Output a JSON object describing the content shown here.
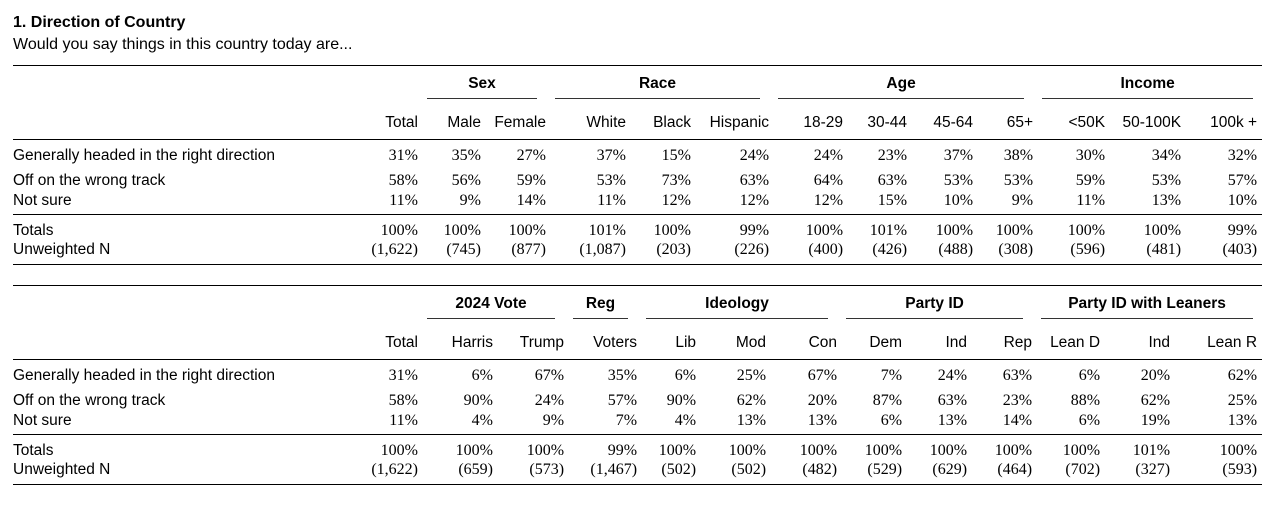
{
  "page": {
    "title": "1. Direction of Country",
    "subtitle": "Would you say things in this country today are..."
  },
  "colors": {
    "text": "#000000",
    "rule": "#000000",
    "background": "#ffffff"
  },
  "tables": [
    {
      "name": "demographics",
      "groups": [
        {
          "label": "Sex",
          "span": 2
        },
        {
          "label": "Race",
          "span": 3
        },
        {
          "label": "Age",
          "span": 4
        },
        {
          "label": "Income",
          "span": 3
        }
      ],
      "columns": [
        "Total",
        "Male",
        "Female",
        "White",
        "Black",
        "Hispanic",
        "18-29",
        "30-44",
        "45-64",
        "65+",
        "<50K",
        "50-100K",
        "100k +"
      ],
      "rows": [
        {
          "label": "Generally headed in the right direction",
          "values": [
            "31%",
            "35%",
            "27%",
            "37%",
            "15%",
            "24%",
            "24%",
            "23%",
            "37%",
            "38%",
            "30%",
            "34%",
            "32%"
          ]
        },
        {
          "label": "Off on the wrong track",
          "values": [
            "58%",
            "56%",
            "59%",
            "53%",
            "73%",
            "63%",
            "64%",
            "63%",
            "53%",
            "53%",
            "59%",
            "53%",
            "57%"
          ]
        },
        {
          "label": "Not sure",
          "values": [
            "11%",
            "9%",
            "14%",
            "11%",
            "12%",
            "12%",
            "12%",
            "15%",
            "10%",
            "9%",
            "11%",
            "13%",
            "10%"
          ]
        }
      ],
      "summary_rows": [
        {
          "label": "Totals",
          "values": [
            "100%",
            "100%",
            "100%",
            "101%",
            "100%",
            "99%",
            "100%",
            "101%",
            "100%",
            "100%",
            "100%",
            "100%",
            "99%"
          ]
        },
        {
          "label": "Unweighted N",
          "values": [
            "(1,622)",
            "(745)",
            "(877)",
            "(1,087)",
            "(203)",
            "(226)",
            "(400)",
            "(426)",
            "(488)",
            "(308)",
            "(596)",
            "(481)",
            "(403)"
          ]
        }
      ]
    },
    {
      "name": "politics",
      "groups": [
        {
          "label": "2024 Vote",
          "span": 2
        },
        {
          "label": "Reg",
          "span": 1
        },
        {
          "label": "Ideology",
          "span": 3
        },
        {
          "label": "Party ID",
          "span": 3
        },
        {
          "label": "Party ID with Leaners",
          "span": 3
        }
      ],
      "columns": [
        "Total",
        "Harris",
        "Trump",
        "Voters",
        "Lib",
        "Mod",
        "Con",
        "Dem",
        "Ind",
        "Rep",
        "Lean D",
        "Ind",
        "Lean R"
      ],
      "rows": [
        {
          "label": "Generally headed in the right direction",
          "values": [
            "31%",
            "6%",
            "67%",
            "35%",
            "6%",
            "25%",
            "67%",
            "7%",
            "24%",
            "63%",
            "6%",
            "20%",
            "62%"
          ]
        },
        {
          "label": "Off on the wrong track",
          "values": [
            "58%",
            "90%",
            "24%",
            "57%",
            "90%",
            "62%",
            "20%",
            "87%",
            "63%",
            "23%",
            "88%",
            "62%",
            "25%"
          ]
        },
        {
          "label": "Not sure",
          "values": [
            "11%",
            "4%",
            "9%",
            "7%",
            "4%",
            "13%",
            "13%",
            "6%",
            "13%",
            "14%",
            "6%",
            "19%",
            "13%"
          ]
        }
      ],
      "summary_rows": [
        {
          "label": "Totals",
          "values": [
            "100%",
            "100%",
            "100%",
            "99%",
            "100%",
            "100%",
            "100%",
            "100%",
            "100%",
            "100%",
            "100%",
            "101%",
            "100%"
          ]
        },
        {
          "label": "Unweighted N",
          "values": [
            "(1,622)",
            "(659)",
            "(573)",
            "(1,467)",
            "(502)",
            "(502)",
            "(482)",
            "(529)",
            "(629)",
            "(464)",
            "(702)",
            "(327)",
            "(593)"
          ]
        }
      ]
    }
  ]
}
